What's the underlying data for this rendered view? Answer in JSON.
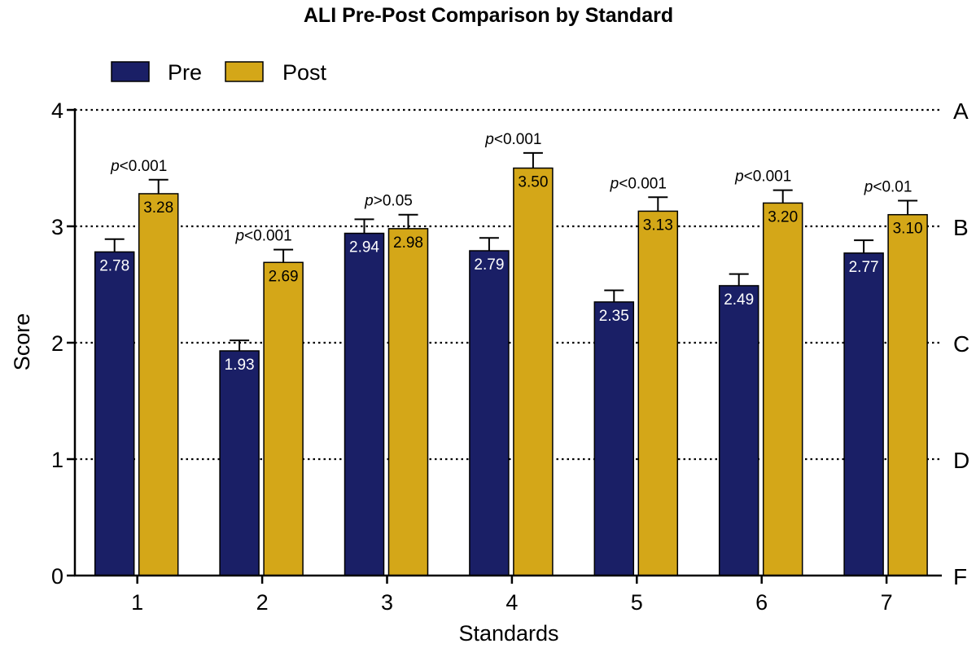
{
  "chart_data": {
    "type": "bar",
    "title": "ALI Pre-Post Comparison by Standard",
    "xlabel": "Standards",
    "ylabel": "Score",
    "ylim": [
      0,
      4
    ],
    "yticks": [
      "0",
      "1",
      "2",
      "3",
      "4"
    ],
    "categories": [
      "1",
      "2",
      "3",
      "4",
      "5",
      "6",
      "7"
    ],
    "series": [
      {
        "name": "Pre",
        "color": "#1a1f66",
        "values": [
          2.78,
          1.93,
          2.94,
          2.79,
          2.35,
          2.49,
          2.77
        ],
        "labels": [
          "2.78",
          "1.93",
          "2.94",
          "2.79",
          "2.35",
          "2.49",
          "2.77"
        ],
        "error": [
          0.11,
          0.09,
          0.12,
          0.11,
          0.1,
          0.1,
          0.11
        ]
      },
      {
        "name": "Post",
        "color": "#d4a718",
        "values": [
          3.28,
          2.69,
          2.98,
          3.5,
          3.13,
          3.2,
          3.1
        ],
        "labels": [
          "3.28",
          "2.69",
          "2.98",
          "3.50",
          "3.13",
          "3.20",
          "3.10"
        ],
        "error": [
          0.12,
          0.11,
          0.12,
          0.13,
          0.12,
          0.11,
          0.12
        ]
      }
    ],
    "pvalues": [
      {
        "p": "p",
        "text": "<0.001"
      },
      {
        "p": "p",
        "text": "<0.001"
      },
      {
        "p": "p",
        "text": ">0.05"
      },
      {
        "p": "p",
        "text": "<0.001"
      },
      {
        "p": "p",
        "text": "<0.001"
      },
      {
        "p": "p",
        "text": "<0.001"
      },
      {
        "p": "p",
        "text": "<0.01"
      }
    ],
    "reference_lines": [
      {
        "value": 4,
        "label": "A"
      },
      {
        "value": 3,
        "label": "B"
      },
      {
        "value": 2,
        "label": "C"
      },
      {
        "value": 1,
        "label": "D"
      },
      {
        "value": 0,
        "label": "F"
      }
    ],
    "legend_position": "top-left",
    "grid": "dotted reference lines at integer scores"
  }
}
